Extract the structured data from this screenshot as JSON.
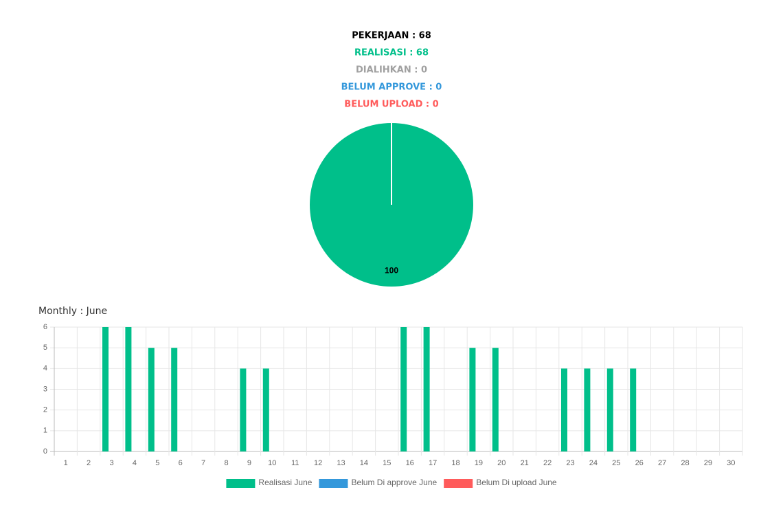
{
  "header": {
    "lines": [
      {
        "text": "PEKERJAAN : 68",
        "color": "#000000"
      },
      {
        "text": "REALISASI : 68",
        "color": "#00bf8a"
      },
      {
        "text": "DIALIHKAN : 0",
        "color": "#a0a0a0"
      },
      {
        "text": "BELUM APPROVE : 0",
        "color": "#3498db"
      },
      {
        "text": "BELUM UPLOAD : 0",
        "color": "#ff5b5b"
      }
    ]
  },
  "chart_data": [
    {
      "type": "pie",
      "values": [
        100
      ],
      "colors": [
        "#00bf8a"
      ]
    },
    {
      "type": "bar",
      "title": "Monthly : June",
      "categories": [
        "1",
        "2",
        "3",
        "4",
        "5",
        "6",
        "7",
        "8",
        "9",
        "10",
        "11",
        "12",
        "13",
        "14",
        "15",
        "16",
        "17",
        "18",
        "19",
        "20",
        "21",
        "22",
        "23",
        "24",
        "25",
        "26",
        "27",
        "28",
        "29",
        "30"
      ],
      "series": [
        {
          "name": "Realisasi June",
          "color": "#00bf8a",
          "values": [
            0,
            0,
            6,
            6,
            5,
            5,
            0,
            0,
            4,
            4,
            0,
            0,
            0,
            0,
            0,
            6,
            6,
            0,
            5,
            5,
            0,
            0,
            4,
            4,
            4,
            4,
            0,
            0,
            0,
            0
          ]
        },
        {
          "name": "Belum Di approve June",
          "color": "#3498db",
          "values": [
            0,
            0,
            0,
            0,
            0,
            0,
            0,
            0,
            0,
            0,
            0,
            0,
            0,
            0,
            0,
            0,
            0,
            0,
            0,
            0,
            0,
            0,
            0,
            0,
            0,
            0,
            0,
            0,
            0,
            0
          ]
        },
        {
          "name": "Belum Di upload June",
          "color": "#ff5b5b",
          "values": [
            0,
            0,
            0,
            0,
            0,
            0,
            0,
            0,
            0,
            0,
            0,
            0,
            0,
            0,
            0,
            0,
            0,
            0,
            0,
            0,
            0,
            0,
            0,
            0,
            0,
            0,
            0,
            0,
            0,
            0
          ]
        }
      ],
      "ylim": [
        0,
        6
      ],
      "yticks": [
        0,
        1,
        2,
        3,
        4,
        5,
        6
      ],
      "grid": true,
      "legend": "bottom"
    }
  ]
}
